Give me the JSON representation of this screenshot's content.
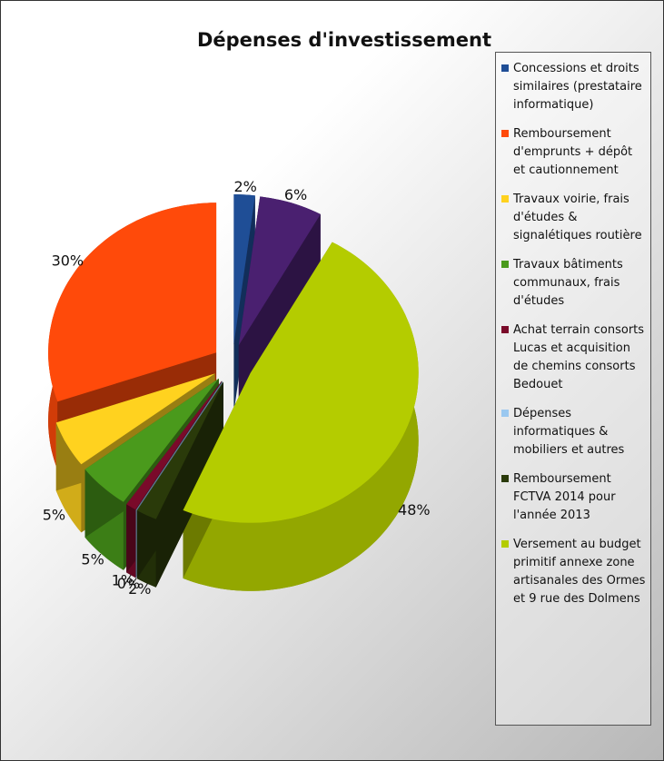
{
  "chart_data": {
    "type": "pie",
    "title": "Dépenses d'investissement",
    "categories": [
      "Concessions et droits similaires (prestataire informatique)",
      "Remboursement d'emprunts + dépôt et cautionnement",
      "Travaux voirie, frais d'études & signalétiques routière",
      "Travaux bâtiments communaux, frais d'études",
      "Achat terrain consorts Lucas et acquisition de chemins consorts Bedouet",
      "Dépenses informatiques & mobiliers et autres",
      "Remboursement FCTVA 2014 pour l'année 2013",
      "Versement au budget primitif annexe zone artisanales des Ormes et 9 rue des Dolmens",
      null
    ],
    "values": [
      2,
      30,
      5,
      5,
      1,
      0,
      2,
      48,
      6
    ],
    "value_labels": [
      "2%",
      "30%",
      "5%",
      "5%",
      "1%",
      "0%",
      "2%",
      "48%",
      "6%"
    ],
    "colors": [
      "#1f4e96",
      "#ff4a0a",
      "#ffd21f",
      "#4a9a1c",
      "#7a0a2a",
      "#9ac8f0",
      "#2a3a0a",
      "#b4cc00",
      "#4a2070"
    ],
    "legend": "right"
  }
}
